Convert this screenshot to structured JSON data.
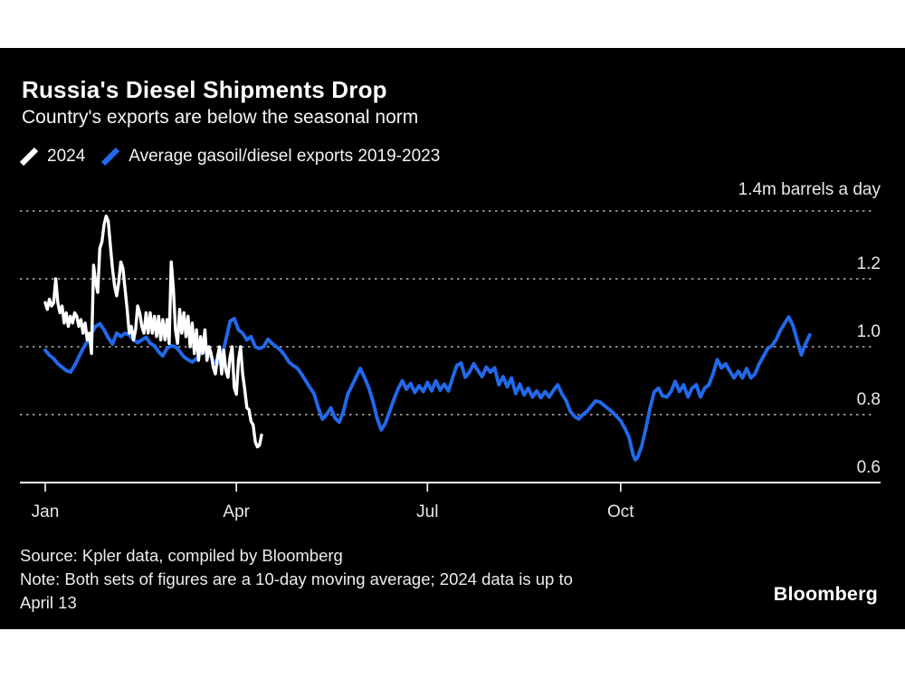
{
  "header": {
    "title": "Russia's Diesel Shipments Drop",
    "subtitle": "Country's exports are below the seasonal norm"
  },
  "legend": {
    "items": [
      {
        "label": "2024",
        "color": "#ffffff"
      },
      {
        "label": "Average gasoil/diesel exports 2019-2023",
        "color": "#2269eb"
      }
    ]
  },
  "footer": {
    "source": "Source: Kpler data, compiled by Bloomberg",
    "note_lines": [
      "Note: Both sets of figures are a 10-day moving average; 2024 data is up to",
      "April 13"
    ],
    "logo": "Bloomberg"
  },
  "chart_data": {
    "type": "line",
    "title": "Russia's Diesel Shipments Drop",
    "subtitle": "Country's exports are below the seasonal norm",
    "background": "#000000",
    "y_axis_top_label": "1.4m barrels a day",
    "ylim": [
      0.6,
      1.4
    ],
    "xlim_days": [
      0,
      365
    ],
    "grid": "horizontal dashed",
    "legend_position": "top-left",
    "y_ticks": [
      {
        "value": 1.4,
        "label": ""
      },
      {
        "value": 1.2,
        "label": "1.2"
      },
      {
        "value": 1.0,
        "label": "1.0"
      },
      {
        "value": 0.8,
        "label": "0.8"
      },
      {
        "value": 0.6,
        "label": "0.6"
      }
    ],
    "x_ticks": [
      {
        "day": 0,
        "label": "Jan"
      },
      {
        "day": 91,
        "label": "Apr"
      },
      {
        "day": 182,
        "label": "Jul"
      },
      {
        "day": 274,
        "label": "Oct"
      }
    ],
    "series": [
      {
        "name": "2024",
        "color": "#ffffff",
        "points": [
          [
            0,
            1.13
          ],
          [
            1,
            1.11
          ],
          [
            2,
            1.14
          ],
          [
            3,
            1.12
          ],
          [
            4,
            1.13
          ],
          [
            5,
            1.2
          ],
          [
            6,
            1.13
          ],
          [
            7,
            1.1
          ],
          [
            8,
            1.12
          ],
          [
            9,
            1.07
          ],
          [
            10,
            1.1
          ],
          [
            11,
            1.06
          ],
          [
            12,
            1.09
          ],
          [
            13,
            1.07
          ],
          [
            14,
            1.1
          ],
          [
            15,
            1.09
          ],
          [
            16,
            1.06
          ],
          [
            17,
            1.08
          ],
          [
            18,
            1.04
          ],
          [
            19,
            1.07
          ],
          [
            20,
            1.02
          ],
          [
            21,
            1.04
          ],
          [
            22,
            0.98
          ],
          [
            23,
            1.24
          ],
          [
            24,
            1.19
          ],
          [
            25,
            1.16
          ],
          [
            26,
            1.29
          ],
          [
            27,
            1.31
          ],
          [
            28,
            1.36
          ],
          [
            29,
            1.385
          ],
          [
            30,
            1.37
          ],
          [
            31,
            1.3
          ],
          [
            32,
            1.23
          ],
          [
            33,
            1.18
          ],
          [
            34,
            1.15
          ],
          [
            35,
            1.19
          ],
          [
            36,
            1.25
          ],
          [
            37,
            1.23
          ],
          [
            38,
            1.17
          ],
          [
            39,
            1.11
          ],
          [
            40,
            1.04
          ],
          [
            41,
            1.06
          ],
          [
            42,
            1.02
          ],
          [
            43,
            1.05
          ],
          [
            44,
            1.12
          ],
          [
            45,
            1.1
          ],
          [
            46,
            1.06
          ],
          [
            47,
            1.04
          ],
          [
            48,
            1.1
          ],
          [
            49,
            1.04
          ],
          [
            50,
            1.1
          ],
          [
            51,
            1.04
          ],
          [
            52,
            1.09
          ],
          [
            53,
            1.03
          ],
          [
            54,
            1.09
          ],
          [
            55,
            1.02
          ],
          [
            56,
            1.08
          ],
          [
            57,
            1.02
          ],
          [
            58,
            1.08
          ],
          [
            59,
            1.01
          ],
          [
            60,
            1.25
          ],
          [
            61,
            1.17
          ],
          [
            62,
            1.05
          ],
          [
            63,
            1.01
          ],
          [
            64,
            1.11
          ],
          [
            65,
            1.04
          ],
          [
            66,
            1.1
          ],
          [
            67,
            1.03
          ],
          [
            68,
            1.09
          ],
          [
            69,
            1.0
          ],
          [
            70,
            1.07
          ],
          [
            71,
            0.98
          ],
          [
            72,
            1.05
          ],
          [
            73,
            0.96
          ],
          [
            74,
            1.03
          ],
          [
            75,
            0.98
          ],
          [
            76,
            1.05
          ],
          [
            77,
            0.96
          ],
          [
            78,
            1.0
          ],
          [
            79,
            0.98
          ],
          [
            80,
            0.94
          ],
          [
            81,
            0.92
          ],
          [
            82,
            0.97
          ],
          [
            83,
            1.0
          ],
          [
            84,
            0.92
          ],
          [
            85,
            0.99
          ],
          [
            86,
            0.93
          ],
          [
            87,
            0.91
          ],
          [
            88,
            0.97
          ],
          [
            89,
            1.0
          ],
          [
            90,
            0.88
          ],
          [
            91,
            0.86
          ],
          [
            92,
            0.96
          ],
          [
            93,
            1.0
          ],
          [
            94,
            0.92
          ],
          [
            95,
            0.875
          ],
          [
            96,
            0.82
          ],
          [
            97,
            0.815
          ],
          [
            98,
            0.78
          ],
          [
            99,
            0.77
          ],
          [
            100,
            0.72
          ],
          [
            101,
            0.705
          ],
          [
            102,
            0.71
          ],
          [
            103,
            0.74
          ]
        ]
      },
      {
        "name": "Average gasoil/diesel exports 2019-2023",
        "color": "#2269eb",
        "points": [
          [
            0,
            0.99
          ],
          [
            2,
            0.975
          ],
          [
            4,
            0.965
          ],
          [
            6,
            0.95
          ],
          [
            8,
            0.94
          ],
          [
            10,
            0.93
          ],
          [
            12,
            0.925
          ],
          [
            14,
            0.945
          ],
          [
            16,
            0.97
          ],
          [
            18,
            0.995
          ],
          [
            20,
            1.015
          ],
          [
            22,
            1.04
          ],
          [
            24,
            1.06
          ],
          [
            26,
            1.068
          ],
          [
            28,
            1.05
          ],
          [
            30,
            1.027
          ],
          [
            32,
            1.008
          ],
          [
            34,
            1.04
          ],
          [
            36,
            1.03
          ],
          [
            38,
            1.04
          ],
          [
            40,
            1.035
          ],
          [
            42,
            1.02
          ],
          [
            44,
            1.012
          ],
          [
            46,
            1.02
          ],
          [
            48,
            1.028
          ],
          [
            50,
            1.01
          ],
          [
            52,
            1.003
          ],
          [
            54,
            0.985
          ],
          [
            56,
            0.973
          ],
          [
            58,
            0.995
          ],
          [
            60,
            1.003
          ],
          [
            62,
            1.0
          ],
          [
            64,
            0.987
          ],
          [
            66,
            0.97
          ],
          [
            68,
            0.962
          ],
          [
            70,
            0.955
          ],
          [
            72,
            0.965
          ],
          [
            74,
            0.98
          ],
          [
            76,
            0.99
          ],
          [
            78,
            0.98
          ],
          [
            80,
            0.96
          ],
          [
            82,
            0.95
          ],
          [
            84,
            0.968
          ],
          [
            86,
            1.02
          ],
          [
            88,
            1.075
          ],
          [
            90,
            1.083
          ],
          [
            92,
            1.05
          ],
          [
            94,
            1.04
          ],
          [
            96,
            1.02
          ],
          [
            98,
            1.03
          ],
          [
            100,
            1.0
          ],
          [
            102,
            0.995
          ],
          [
            104,
            1.0
          ],
          [
            106,
            1.022
          ],
          [
            108,
            1.01
          ],
          [
            110,
            1.0
          ],
          [
            112,
            0.99
          ],
          [
            114,
            0.975
          ],
          [
            116,
            0.955
          ],
          [
            118,
            0.945
          ],
          [
            120,
            0.937
          ],
          [
            122,
            0.92
          ],
          [
            124,
            0.9
          ],
          [
            126,
            0.88
          ],
          [
            128,
            0.862
          ],
          [
            130,
            0.82
          ],
          [
            132,
            0.787
          ],
          [
            134,
            0.8
          ],
          [
            136,
            0.82
          ],
          [
            138,
            0.79
          ],
          [
            140,
            0.778
          ],
          [
            142,
            0.81
          ],
          [
            144,
            0.86
          ],
          [
            146,
            0.885
          ],
          [
            148,
            0.91
          ],
          [
            150,
            0.936
          ],
          [
            152,
            0.91
          ],
          [
            154,
            0.88
          ],
          [
            156,
            0.84
          ],
          [
            158,
            0.79
          ],
          [
            160,
            0.755
          ],
          [
            162,
            0.775
          ],
          [
            164,
            0.81
          ],
          [
            166,
            0.845
          ],
          [
            168,
            0.875
          ],
          [
            170,
            0.9
          ],
          [
            172,
            0.875
          ],
          [
            174,
            0.892
          ],
          [
            176,
            0.865
          ],
          [
            178,
            0.885
          ],
          [
            180,
            0.868
          ],
          [
            182,
            0.895
          ],
          [
            184,
            0.87
          ],
          [
            186,
            0.9
          ],
          [
            188,
            0.872
          ],
          [
            190,
            0.89
          ],
          [
            192,
            0.87
          ],
          [
            194,
            0.91
          ],
          [
            196,
            0.945
          ],
          [
            198,
            0.952
          ],
          [
            200,
            0.91
          ],
          [
            202,
            0.925
          ],
          [
            204,
            0.95
          ],
          [
            206,
            0.93
          ],
          [
            208,
            0.912
          ],
          [
            210,
            0.94
          ],
          [
            212,
            0.925
          ],
          [
            214,
            0.938
          ],
          [
            216,
            0.888
          ],
          [
            218,
            0.912
          ],
          [
            220,
            0.882
          ],
          [
            222,
            0.908
          ],
          [
            224,
            0.862
          ],
          [
            226,
            0.89
          ],
          [
            228,
            0.858
          ],
          [
            230,
            0.878
          ],
          [
            232,
            0.852
          ],
          [
            234,
            0.87
          ],
          [
            236,
            0.85
          ],
          [
            238,
            0.868
          ],
          [
            240,
            0.852
          ],
          [
            242,
            0.872
          ],
          [
            244,
            0.888
          ],
          [
            246,
            0.862
          ],
          [
            248,
            0.842
          ],
          [
            250,
            0.81
          ],
          [
            252,
            0.795
          ],
          [
            254,
            0.787
          ],
          [
            256,
            0.8
          ],
          [
            258,
            0.81
          ],
          [
            260,
            0.825
          ],
          [
            262,
            0.84
          ],
          [
            264,
            0.838
          ],
          [
            266,
            0.828
          ],
          [
            268,
            0.818
          ],
          [
            270,
            0.808
          ],
          [
            272,
            0.795
          ],
          [
            274,
            0.782
          ],
          [
            276,
            0.76
          ],
          [
            278,
            0.733
          ],
          [
            280,
            0.68
          ],
          [
            281,
            0.667
          ],
          [
            282,
            0.673
          ],
          [
            284,
            0.707
          ],
          [
            286,
            0.76
          ],
          [
            288,
            0.82
          ],
          [
            290,
            0.867
          ],
          [
            292,
            0.878
          ],
          [
            294,
            0.855
          ],
          [
            296,
            0.852
          ],
          [
            298,
            0.868
          ],
          [
            300,
            0.898
          ],
          [
            302,
            0.868
          ],
          [
            304,
            0.888
          ],
          [
            306,
            0.852
          ],
          [
            308,
            0.878
          ],
          [
            310,
            0.888
          ],
          [
            312,
            0.852
          ],
          [
            314,
            0.878
          ],
          [
            316,
            0.888
          ],
          [
            318,
            0.92
          ],
          [
            320,
            0.962
          ],
          [
            322,
            0.938
          ],
          [
            324,
            0.95
          ],
          [
            326,
            0.928
          ],
          [
            328,
            0.908
          ],
          [
            330,
            0.928
          ],
          [
            332,
            0.908
          ],
          [
            334,
            0.936
          ],
          [
            336,
            0.908
          ],
          [
            338,
            0.92
          ],
          [
            340,
            0.95
          ],
          [
            342,
            0.972
          ],
          [
            344,
            0.995
          ],
          [
            346,
            1.003
          ],
          [
            348,
            1.02
          ],
          [
            350,
            1.048
          ],
          [
            352,
            1.068
          ],
          [
            354,
            1.088
          ],
          [
            356,
            1.063
          ],
          [
            358,
            1.02
          ],
          [
            360,
            0.976
          ],
          [
            362,
            1.008
          ],
          [
            364,
            1.035
          ]
        ]
      }
    ]
  }
}
